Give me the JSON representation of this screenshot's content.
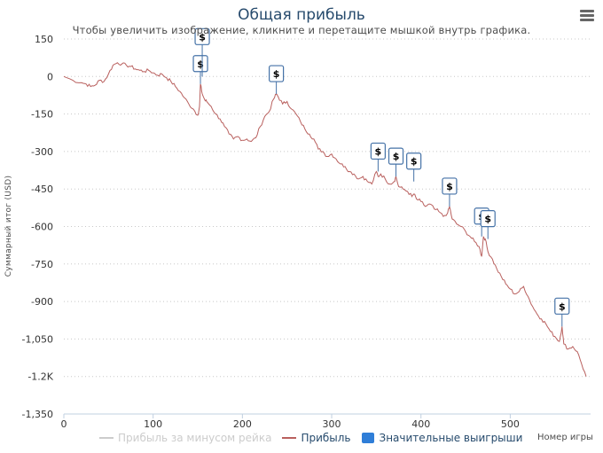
{
  "header": {
    "title": "Общая прибыль",
    "subtitle": "Чтобы увеличить изображение, кликните и перетащите мышкой внутрь графика."
  },
  "chart_data": {
    "type": "line",
    "title": "Общая прибыль",
    "subtitle": "Чтобы увеличить изображение, кликните и перетащите мышкой внутрь графика.",
    "xlabel": "Номер игры",
    "ylabel": "Суммарный итог (USD)",
    "xlim": [
      0,
      590
    ],
    "ylim": [
      -1350,
      150
    ],
    "x_ticks": [
      0,
      100,
      200,
      300,
      400,
      500
    ],
    "y_ticks": [
      150,
      0,
      -150,
      -300,
      -450,
      -600,
      -750,
      -900,
      -1050,
      -1200,
      -1350
    ],
    "y_tick_labels": [
      "150",
      "0",
      "-150",
      "-300",
      "-450",
      "-600",
      "-750",
      "-900",
      "-1,050",
      "-1.2K",
      "-1,350"
    ],
    "grid": true,
    "legend": [
      {
        "name": "Прибыль за минусом рейка",
        "color": "#cccccc",
        "hidden": true
      },
      {
        "name": "Прибыль",
        "color": "#b9605e"
      },
      {
        "name": "Значительные выигрыши",
        "color": "#2f7ed8"
      }
    ],
    "series": [
      {
        "name": "Прибыль",
        "color": "#b9605e",
        "x": [
          0,
          10,
          20,
          25,
          30,
          35,
          40,
          45,
          50,
          55,
          60,
          65,
          70,
          75,
          80,
          85,
          90,
          95,
          100,
          105,
          110,
          115,
          120,
          125,
          130,
          135,
          140,
          145,
          150,
          152,
          153,
          155,
          158,
          160,
          165,
          170,
          175,
          180,
          185,
          190,
          195,
          200,
          205,
          210,
          215,
          220,
          225,
          230,
          235,
          238,
          240,
          245,
          250,
          255,
          260,
          265,
          270,
          275,
          280,
          285,
          290,
          295,
          300,
          305,
          310,
          315,
          320,
          325,
          330,
          335,
          340,
          345,
          350,
          352,
          355,
          360,
          365,
          370,
          372,
          375,
          380,
          385,
          390,
          392,
          395,
          400,
          405,
          410,
          415,
          420,
          425,
          430,
          432,
          435,
          440,
          445,
          450,
          455,
          460,
          465,
          468,
          470,
          472,
          475,
          480,
          485,
          490,
          495,
          500,
          505,
          510,
          515,
          520,
          525,
          530,
          535,
          540,
          545,
          550,
          555,
          558,
          560,
          565,
          570,
          575,
          580,
          585
        ],
        "values": [
          0,
          -15,
          -25,
          -30,
          -40,
          -35,
          -15,
          -20,
          10,
          45,
          55,
          50,
          45,
          40,
          30,
          25,
          20,
          25,
          15,
          5,
          10,
          -5,
          -20,
          -40,
          -60,
          -85,
          -110,
          -130,
          -155,
          -120,
          -30,
          -70,
          -95,
          -100,
          -120,
          -150,
          -170,
          -200,
          -230,
          -250,
          -240,
          -255,
          -250,
          -260,
          -245,
          -200,
          -160,
          -140,
          -90,
          -70,
          -80,
          -110,
          -100,
          -130,
          -150,
          -180,
          -210,
          -230,
          -250,
          -290,
          -300,
          -320,
          -310,
          -330,
          -350,
          -360,
          -380,
          -390,
          -410,
          -400,
          -420,
          -430,
          -380,
          -400,
          -390,
          -410,
          -430,
          -420,
          -400,
          -440,
          -450,
          -460,
          -480,
          -470,
          -490,
          -500,
          -520,
          -510,
          -530,
          -540,
          -560,
          -545,
          -520,
          -570,
          -590,
          -600,
          -620,
          -640,
          -660,
          -680,
          -720,
          -640,
          -650,
          -700,
          -730,
          -770,
          -800,
          -830,
          -850,
          -870,
          -860,
          -840,
          -880,
          -920,
          -950,
          -970,
          -990,
          -1020,
          -1040,
          -1060,
          -1000,
          -1070,
          -1090,
          -1080,
          -1100,
          -1150,
          -1200
        ]
      },
      {
        "name": "Значительные выигрыши",
        "type": "flags",
        "label": "$",
        "x": [
          153,
          155,
          238,
          352,
          372,
          392,
          432,
          468,
          475,
          558
        ],
        "values": [
          -30,
          0,
          -70,
          -380,
          -400,
          -420,
          -520,
          -640,
          -650,
          -1000
        ]
      }
    ]
  },
  "legend_labels": {
    "net_of_rake": "Прибыль за минусом рейка",
    "profit": "Прибыль",
    "big_wins": "Значительные выигрыши"
  },
  "axis": {
    "xlabel": "Номер игры",
    "ylabel": "Суммарный итог (USD)"
  },
  "colors": {
    "line": "#b9605e",
    "flag_border": "#4572a7",
    "legend_box": "#2f7ed8",
    "hidden_legend": "#cccccc",
    "title": "#274b6d"
  }
}
